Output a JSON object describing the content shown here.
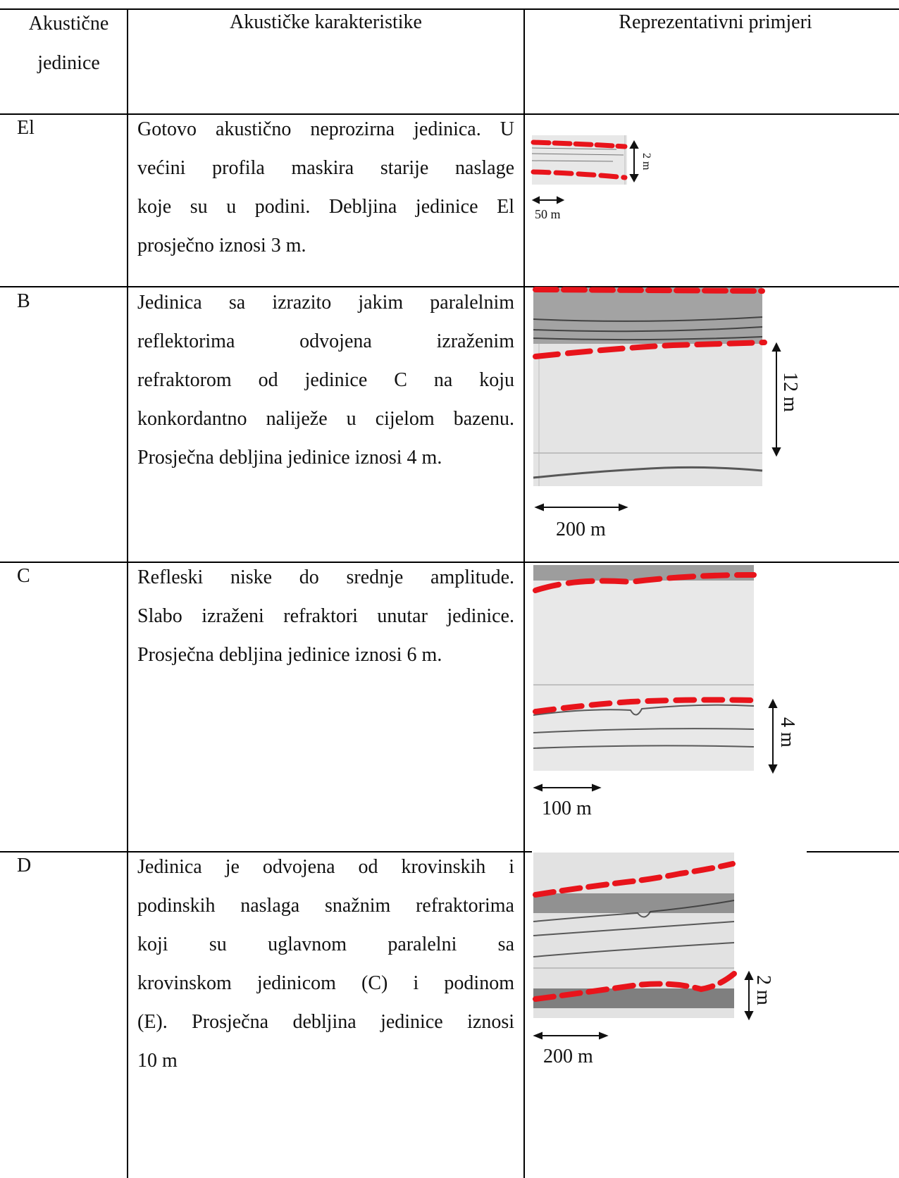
{
  "table": {
    "headers": {
      "units": [
        "Akustične",
        "jedinice"
      ],
      "characteristics": "Akustičke karakteristike",
      "examples": "Reprezentativni primjeri"
    },
    "rows": [
      {
        "unit": "El",
        "lines": [
          "Gotovo akustično neprozirna jedinica. U",
          "većini profila maskira starije naslage",
          "koje su u podini. Debljina jedinice El",
          "prosječno iznosi 3 m."
        ],
        "vertical_scale": "2 m",
        "horizontal_scale": "50 m"
      },
      {
        "unit": "B",
        "lines": [
          "Jedinica sa izrazito jakim paralelnim",
          "reflektorima odvojena izraženim",
          "refraktorom od jedinice C na koju",
          "konkordantno naliježe u cijelom bazenu.",
          "Prosječna debljina jedinice iznosi 4 m."
        ],
        "vertical_scale": "12 m",
        "horizontal_scale": "200 m"
      },
      {
        "unit": "C",
        "lines": [
          "Refleski niske do srednje amplitude.",
          "Slabo izraženi refraktori unutar jedinice.",
          "Prosječna debljina jedinice iznosi 6 m."
        ],
        "vertical_scale": "4 m",
        "horizontal_scale": "100 m"
      },
      {
        "unit": "D",
        "lines": [
          "Jedinica je odvojena od krovinskih i",
          "podinskih naslaga snažnim refraktorima",
          "koji su uglavnom paralelni sa",
          "krovinskom jedinicom (C) i podinom",
          "(E). Prosječna debljina jedinice iznosi",
          "10 m"
        ],
        "vertical_scale": "2 m",
        "horizontal_scale": "200 m"
      }
    ]
  },
  "colors": {
    "boundary_dash": "#e8141b",
    "profile_background": "#e6e6e6"
  }
}
